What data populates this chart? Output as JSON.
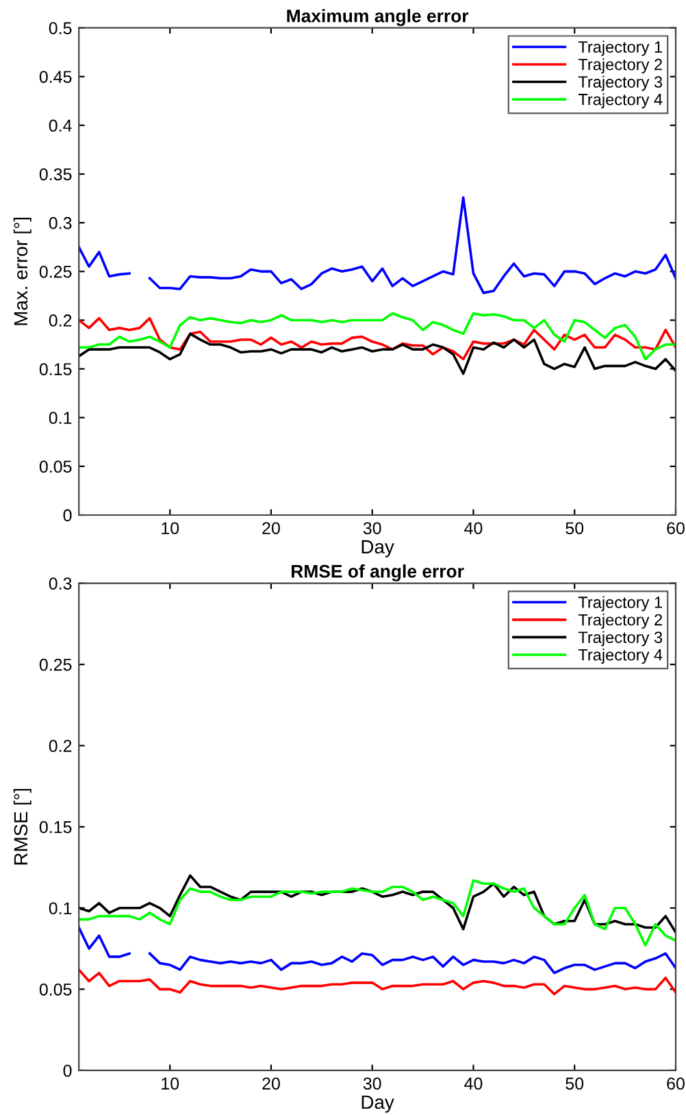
{
  "chart_data": [
    {
      "type": "line",
      "title": "Maximum angle error",
      "xlabel": "Day",
      "ylabel": "Max. error [°]",
      "xlim": [
        1,
        60
      ],
      "xticks": [
        10,
        20,
        30,
        40,
        50,
        60
      ],
      "ylim": [
        0,
        0.5
      ],
      "yticks": [
        0,
        0.05,
        0.1,
        0.15,
        0.2,
        0.25,
        0.3,
        0.35,
        0.4,
        0.45,
        0.5
      ],
      "grid": false,
      "legend": "top right",
      "marker": "none",
      "line_style": "solid",
      "x": [
        1,
        2,
        3,
        4,
        5,
        6,
        7,
        8,
        9,
        10,
        11,
        12,
        13,
        14,
        15,
        16,
        17,
        18,
        19,
        20,
        21,
        22,
        23,
        24,
        25,
        26,
        27,
        28,
        29,
        30,
        31,
        32,
        33,
        34,
        35,
        36,
        37,
        38,
        39,
        40,
        41,
        42,
        43,
        44,
        45,
        46,
        47,
        48,
        49,
        50,
        51,
        52,
        53,
        54,
        55,
        56,
        57,
        58,
        59,
        60
      ],
      "series": [
        {
          "name": "Trajectory 1",
          "color": "#0000ff",
          "values": [
            0.275,
            0.255,
            0.27,
            0.245,
            0.247,
            0.248,
            null,
            0.243,
            0.233,
            0.233,
            0.232,
            0.245,
            0.244,
            0.244,
            0.243,
            0.243,
            0.245,
            0.252,
            0.25,
            0.25,
            0.238,
            0.242,
            0.232,
            0.237,
            0.248,
            0.253,
            0.25,
            0.252,
            0.255,
            0.24,
            0.253,
            0.235,
            0.243,
            0.235,
            0.24,
            0.245,
            0.25,
            0.247,
            0.326,
            0.248,
            0.228,
            0.23,
            0.245,
            0.258,
            0.245,
            0.248,
            0.247,
            0.235,
            0.25,
            0.25,
            0.248,
            0.237,
            0.243,
            0.248,
            0.245,
            0.25,
            0.248,
            0.252,
            0.267,
            0.243
          ]
        },
        {
          "name": "Trajectory 2",
          "color": "#ff0000",
          "values": [
            0.2,
            0.192,
            0.202,
            0.19,
            0.192,
            0.19,
            0.192,
            0.202,
            0.18,
            0.172,
            0.17,
            0.186,
            0.188,
            0.178,
            0.178,
            0.178,
            0.18,
            0.18,
            0.175,
            0.182,
            0.175,
            0.178,
            0.172,
            0.178,
            0.175,
            0.176,
            0.176,
            0.182,
            0.183,
            0.178,
            0.175,
            0.17,
            0.176,
            0.174,
            0.174,
            0.165,
            0.172,
            0.168,
            0.16,
            0.178,
            0.176,
            0.176,
            0.176,
            0.18,
            0.175,
            0.19,
            0.18,
            0.17,
            0.185,
            0.18,
            0.185,
            0.172,
            0.172,
            0.185,
            0.18,
            0.172,
            0.172,
            0.17,
            0.19,
            0.172
          ]
        },
        {
          "name": "Trajectory 3",
          "color": "#000000",
          "values": [
            0.163,
            0.17,
            0.17,
            0.17,
            0.172,
            0.172,
            0.172,
            0.172,
            0.167,
            0.16,
            0.165,
            0.186,
            0.18,
            0.175,
            0.175,
            0.172,
            0.167,
            0.168,
            0.168,
            0.17,
            0.166,
            0.17,
            0.17,
            0.17,
            0.167,
            0.172,
            0.168,
            0.17,
            0.172,
            0.168,
            0.17,
            0.17,
            0.175,
            0.17,
            0.17,
            0.175,
            0.172,
            0.165,
            0.145,
            0.172,
            0.17,
            0.177,
            0.172,
            0.18,
            0.172,
            0.18,
            0.155,
            0.15,
            0.155,
            0.152,
            0.172,
            0.15,
            0.153,
            0.153,
            0.153,
            0.157,
            0.153,
            0.15,
            0.16,
            0.148
          ]
        },
        {
          "name": "Trajectory 4",
          "color": "#00ff00",
          "values": [
            0.172,
            0.172,
            0.175,
            0.175,
            0.183,
            0.178,
            0.18,
            0.183,
            0.178,
            0.172,
            0.195,
            0.203,
            0.2,
            0.202,
            0.2,
            0.198,
            0.197,
            0.2,
            0.198,
            0.2,
            0.205,
            0.2,
            0.2,
            0.2,
            0.198,
            0.2,
            0.198,
            0.2,
            0.2,
            0.2,
            0.2,
            0.207,
            0.203,
            0.2,
            0.19,
            0.198,
            0.195,
            0.19,
            0.186,
            0.207,
            0.205,
            0.206,
            0.204,
            0.2,
            0.2,
            0.192,
            0.2,
            0.185,
            0.178,
            0.2,
            0.198,
            0.19,
            0.182,
            0.192,
            0.195,
            0.183,
            0.16,
            0.17,
            0.175,
            0.175
          ]
        }
      ]
    },
    {
      "type": "line",
      "title": "RMSE of angle error",
      "xlabel": "Day",
      "ylabel": "RMSE [°]",
      "xlim": [
        1,
        60
      ],
      "xticks": [
        10,
        20,
        30,
        40,
        50,
        60
      ],
      "ylim": [
        0,
        0.3
      ],
      "yticks": [
        0,
        0.05,
        0.1,
        0.15,
        0.2,
        0.25,
        0.3
      ],
      "grid": false,
      "legend": "top right",
      "marker": "none",
      "line_style": "solid",
      "x": [
        1,
        2,
        3,
        4,
        5,
        6,
        7,
        8,
        9,
        10,
        11,
        12,
        13,
        14,
        15,
        16,
        17,
        18,
        19,
        20,
        21,
        22,
        23,
        24,
        25,
        26,
        27,
        28,
        29,
        30,
        31,
        32,
        33,
        34,
        35,
        36,
        37,
        38,
        39,
        40,
        41,
        42,
        43,
        44,
        45,
        46,
        47,
        48,
        49,
        50,
        51,
        52,
        53,
        54,
        55,
        56,
        57,
        58,
        59,
        60
      ],
      "series": [
        {
          "name": "Trajectory 1",
          "color": "#0000ff",
          "values": [
            0.088,
            0.075,
            0.083,
            0.07,
            0.07,
            0.072,
            null,
            0.072,
            0.066,
            0.065,
            0.062,
            0.07,
            0.068,
            0.067,
            0.066,
            0.067,
            0.066,
            0.067,
            0.066,
            0.068,
            0.062,
            0.066,
            0.066,
            0.067,
            0.065,
            0.066,
            0.07,
            0.067,
            0.072,
            0.071,
            0.065,
            0.068,
            0.068,
            0.07,
            0.068,
            0.07,
            0.064,
            0.07,
            0.065,
            0.068,
            0.067,
            0.067,
            0.066,
            0.068,
            0.066,
            0.07,
            0.068,
            0.06,
            0.063,
            0.065,
            0.065,
            0.062,
            0.064,
            0.066,
            0.066,
            0.063,
            0.067,
            0.069,
            0.072,
            0.063
          ]
        },
        {
          "name": "Trajectory 2",
          "color": "#ff0000",
          "values": [
            0.062,
            0.055,
            0.06,
            0.052,
            0.055,
            0.055,
            0.055,
            0.056,
            0.05,
            0.05,
            0.048,
            0.055,
            0.053,
            0.052,
            0.052,
            0.052,
            0.052,
            0.051,
            0.052,
            0.051,
            0.05,
            0.051,
            0.052,
            0.052,
            0.052,
            0.053,
            0.053,
            0.054,
            0.054,
            0.054,
            0.05,
            0.052,
            0.052,
            0.052,
            0.053,
            0.053,
            0.053,
            0.055,
            0.05,
            0.054,
            0.055,
            0.054,
            0.052,
            0.052,
            0.051,
            0.053,
            0.053,
            0.047,
            0.052,
            0.051,
            0.05,
            0.05,
            0.051,
            0.052,
            0.05,
            0.051,
            0.05,
            0.05,
            0.057,
            0.048
          ]
        },
        {
          "name": "Trajectory 3",
          "color": "#000000",
          "values": [
            0.1,
            0.098,
            0.103,
            0.097,
            0.1,
            0.1,
            0.1,
            0.103,
            0.1,
            0.095,
            0.108,
            0.12,
            0.113,
            0.113,
            0.11,
            0.107,
            0.105,
            0.11,
            0.11,
            0.11,
            0.11,
            0.107,
            0.11,
            0.11,
            0.108,
            0.11,
            0.11,
            0.11,
            0.112,
            0.11,
            0.107,
            0.108,
            0.11,
            0.108,
            0.11,
            0.11,
            0.105,
            0.1,
            0.087,
            0.107,
            0.11,
            0.115,
            0.107,
            0.113,
            0.108,
            0.11,
            0.095,
            0.09,
            0.092,
            0.092,
            0.105,
            0.09,
            0.09,
            0.092,
            0.09,
            0.09,
            0.088,
            0.088,
            0.095,
            0.085
          ]
        },
        {
          "name": "Trajectory 4",
          "color": "#00ff00",
          "values": [
            0.093,
            0.093,
            0.095,
            0.095,
            0.095,
            0.095,
            0.093,
            0.097,
            0.093,
            0.09,
            0.105,
            0.112,
            0.11,
            0.11,
            0.107,
            0.105,
            0.105,
            0.107,
            0.107,
            0.107,
            0.11,
            0.11,
            0.11,
            0.109,
            0.11,
            0.11,
            0.11,
            0.112,
            0.111,
            0.11,
            0.11,
            0.113,
            0.113,
            0.11,
            0.105,
            0.107,
            0.105,
            0.103,
            0.095,
            0.117,
            0.115,
            0.115,
            0.112,
            0.11,
            0.112,
            0.1,
            0.095,
            0.09,
            0.09,
            0.1,
            0.108,
            0.09,
            0.087,
            0.1,
            0.1,
            0.09,
            0.077,
            0.09,
            0.083,
            0.08
          ]
        }
      ]
    }
  ]
}
